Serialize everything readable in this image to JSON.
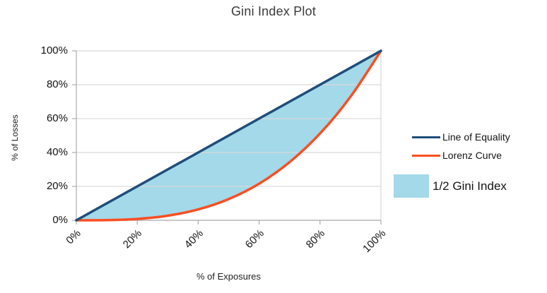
{
  "title": "Gini Index Plot",
  "chart_data": {
    "type": "area",
    "title": "Gini Index Plot",
    "xlabel": "% of Exposures",
    "ylabel": "% of Losses",
    "xlim": [
      0,
      100
    ],
    "ylim": [
      0,
      100
    ],
    "grid": true,
    "legend_position": "right",
    "x_ticks": [
      "0%",
      "20%",
      "40%",
      "60%",
      "80%",
      "100%"
    ],
    "y_ticks": [
      "0%",
      "20%",
      "40%",
      "60%",
      "80%",
      "100%"
    ],
    "x": [
      0,
      10,
      20,
      30,
      40,
      50,
      60,
      70,
      80,
      90,
      100
    ],
    "series": [
      {
        "name": "Line of Equality",
        "color": "#1F4E79",
        "values": [
          0,
          10,
          20,
          30,
          40,
          50,
          60,
          70,
          80,
          90,
          100
        ]
      },
      {
        "name": "Lorenz Curve",
        "color": "#FA4E22",
        "values": [
          0,
          0.1,
          0.8,
          2.7,
          6.4,
          12.5,
          21.6,
          34.3,
          51.2,
          72.9,
          100
        ]
      }
    ],
    "shaded_area": {
      "name": "1/2 Gini Index",
      "color": "#A3D9E9",
      "between": [
        "Line of Equality",
        "Lorenz Curve"
      ]
    }
  },
  "legend": {
    "items": [
      {
        "label": "Line of Equality",
        "swatch": "line",
        "color": "#1F4E79"
      },
      {
        "label": "Lorenz Curve",
        "swatch": "line",
        "color": "#FA4E22"
      },
      {
        "label": "1/2 Gini Index",
        "swatch": "square",
        "color": "#A3D9E9"
      }
    ]
  },
  "colors": {
    "equality": "#1F4E79",
    "lorenz": "#FA4E22",
    "fill": "#A3D9E9",
    "grid": "#D9D9D9",
    "axis": "#ACACAC",
    "title_text": "#3B3B3B"
  }
}
